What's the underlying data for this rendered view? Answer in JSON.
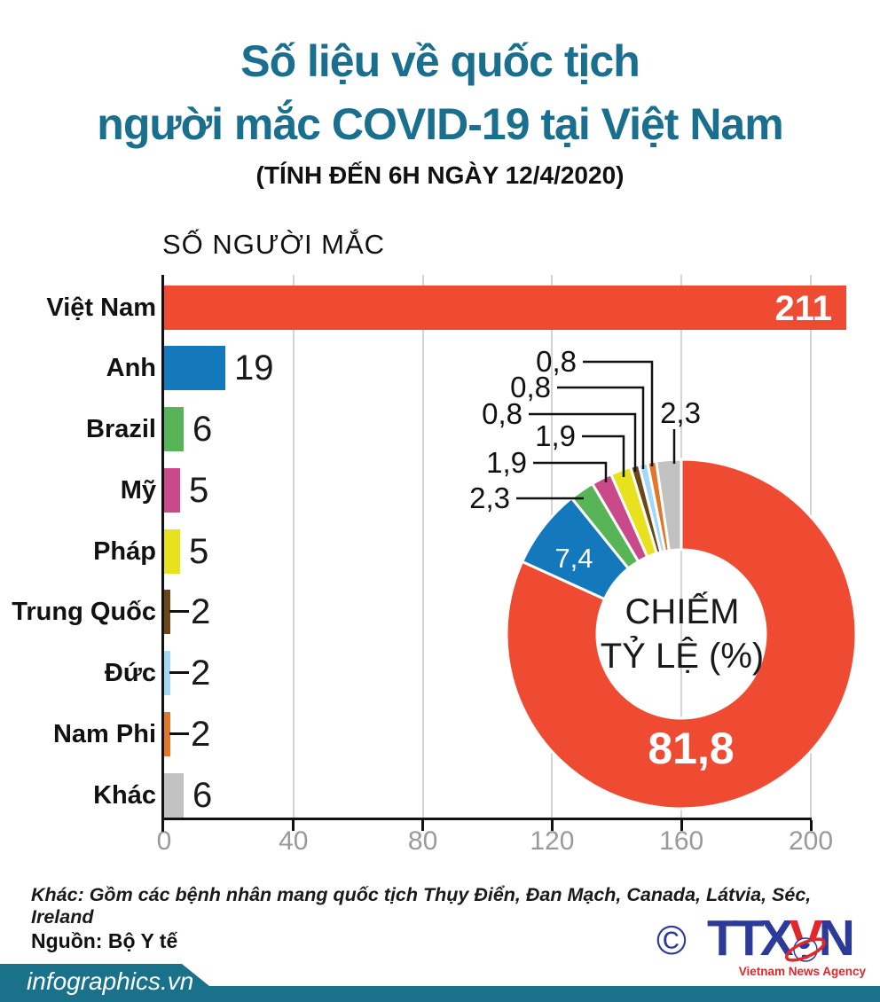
{
  "header": {
    "title_line1": "Số liệu về quốc tịch",
    "title_line2": "người mắc COVID-19 tại Việt Nam",
    "subtitle": "(TÍNH ĐẾN 6H NGÀY 12/4/2020)"
  },
  "colors": {
    "accent_teal": "#196f8d",
    "banner_teal": "#19718a",
    "logo_blue": "#2c3b97",
    "logo_red": "#e2262b",
    "axis_black": "#111111",
    "grid_gray": "#d4d4d4",
    "tick_gray": "#9a9a9a"
  },
  "chart_data": [
    {
      "type": "bar",
      "orientation": "horizontal",
      "title": "SỐ NGƯỜI MẮC",
      "categories": [
        "Việt Nam",
        "Anh",
        "Brazil",
        "Mỹ",
        "Pháp",
        "Trung Quốc",
        "Đức",
        "Nam Phi",
        "Khác"
      ],
      "values": [
        211,
        19,
        6,
        5,
        5,
        2,
        2,
        2,
        6
      ],
      "value_labels": [
        "211",
        "19",
        "6",
        "5",
        "5",
        "2",
        "2",
        "2",
        "6"
      ],
      "colors": [
        "#ef4a32",
        "#1478bc",
        "#57b457",
        "#c9498a",
        "#e8e11d",
        "#6b4616",
        "#a3d9f6",
        "#e2762a",
        "#c2c2c2"
      ],
      "xticks": [
        0,
        40,
        80,
        120,
        160,
        200
      ],
      "xlim": [
        0,
        211
      ],
      "grid": true
    },
    {
      "type": "pie",
      "donut": true,
      "center_label_line1": "CHIẾM",
      "center_label_line2": "TỶ LỆ (%)",
      "segments": [
        {
          "name": "Việt Nam",
          "value": 81.8,
          "label": "81,8",
          "color": "#ef4a32"
        },
        {
          "name": "Anh",
          "value": 7.4,
          "label": "7,4",
          "color": "#1478bc"
        },
        {
          "name": "Brazil",
          "value": 2.3,
          "label": "2,3",
          "color": "#57b457"
        },
        {
          "name": "Mỹ",
          "value": 1.9,
          "label": "1,9",
          "color": "#c9498a"
        },
        {
          "name": "Pháp",
          "value": 1.9,
          "label": "1,9",
          "color": "#e8e11d"
        },
        {
          "name": "Trung Quốc",
          "value": 0.8,
          "label": "0,8",
          "color": "#6b4616"
        },
        {
          "name": "Đức",
          "value": 0.8,
          "label": "0,8",
          "color": "#a3d9f6"
        },
        {
          "name": "Nam Phi",
          "value": 0.8,
          "label": "0,8",
          "color": "#e2762a"
        },
        {
          "name": "Khác",
          "value": 2.3,
          "label": "2,3",
          "color": "#c2c2c2"
        }
      ]
    }
  ],
  "footer": {
    "note": "Khác: Gồm các bệnh nhân mang quốc tịch Thụy Điển, Đan Mạch, Canada, Látvia, Séc, Ireland",
    "source": "Nguồn: Bộ Y tế",
    "site": "infographics.vn",
    "logo": {
      "copyright": "©",
      "ttx": "TTX",
      "v": "V",
      "n": "N",
      "agency": "Vietnam News Agency"
    }
  }
}
